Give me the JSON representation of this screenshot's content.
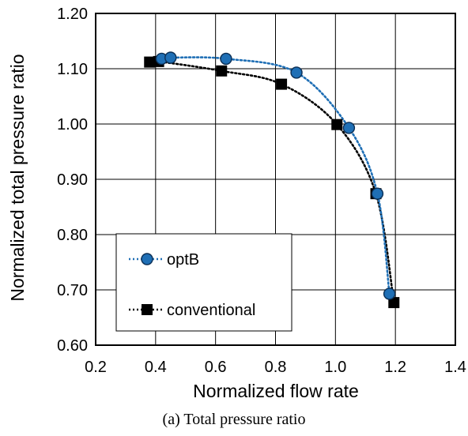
{
  "chart_data": {
    "type": "line",
    "xlabel": "Normalized flow rate",
    "ylabel": "Normalized total pressure ratio",
    "xlim": [
      0.2,
      1.4
    ],
    "ylim": [
      0.6,
      1.2
    ],
    "x_ticks": [
      "0.2",
      "0.4",
      "0.6",
      "0.8",
      "1.0",
      "1.2",
      "1.4"
    ],
    "y_ticks": [
      "0.60",
      "0.70",
      "0.80",
      "0.90",
      "1.00",
      "1.10",
      "1.20"
    ],
    "grid": true,
    "legend_position": "bottom-left",
    "series": [
      {
        "name": "optB",
        "marker": "circle",
        "color": "#1f6fb5",
        "line_style": "dotted",
        "points": [
          {
            "x": 0.42,
            "y": 1.118
          },
          {
            "x": 0.45,
            "y": 1.12
          },
          {
            "x": 0.635,
            "y": 1.118
          },
          {
            "x": 0.87,
            "y": 1.093
          },
          {
            "x": 1.045,
            "y": 0.993
          },
          {
            "x": 1.14,
            "y": 0.874
          },
          {
            "x": 1.18,
            "y": 0.693
          }
        ]
      },
      {
        "name": "conventional",
        "marker": "square",
        "color": "#000000",
        "line_style": "dotted",
        "points": [
          {
            "x": 0.38,
            "y": 1.112
          },
          {
            "x": 0.41,
            "y": 1.113
          },
          {
            "x": 0.62,
            "y": 1.096
          },
          {
            "x": 0.82,
            "y": 1.072
          },
          {
            "x": 1.005,
            "y": 0.999
          },
          {
            "x": 1.135,
            "y": 0.874
          },
          {
            "x": 1.195,
            "y": 0.677
          }
        ]
      }
    ]
  },
  "caption": "(a)   Total pressure ratio"
}
